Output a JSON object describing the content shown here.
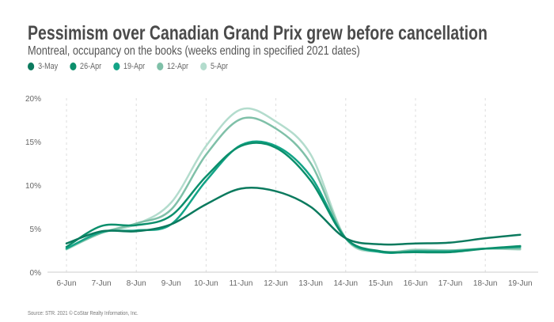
{
  "chart_data": {
    "type": "line",
    "title": "Pessimism over Canadian Grand Prix grew before cancellation",
    "subtitle": "Montreal, occupancy on the books (weeks ending in specified 2021 dates)",
    "source": "Source: STR. 2021 © CoStar Realty Information, Inc.",
    "x": [
      "6-Jun",
      "7-Jun",
      "8-Jun",
      "9-Jun",
      "10-Jun",
      "11-Jun",
      "12-Jun",
      "13-Jun",
      "14-Jun",
      "15-Jun",
      "16-Jun",
      "17-Jun",
      "18-Jun",
      "19-Jun"
    ],
    "ylim": [
      0,
      20
    ],
    "yticks": [
      0,
      5,
      10,
      15,
      20
    ],
    "ytick_labels": [
      "0%",
      "5%",
      "10%",
      "15%",
      "20%"
    ],
    "grid": "vertical dashed at alternate days",
    "legend_position": "top-left",
    "series": [
      {
        "name": "3-May",
        "color": "#0b7a5e",
        "values": [
          3.3,
          4.7,
          4.7,
          5.5,
          7.8,
          9.6,
          9.3,
          7.5,
          3.9,
          3.2,
          3.3,
          3.4,
          3.9,
          4.3
        ]
      },
      {
        "name": "26-Apr",
        "color": "#0b8f6c",
        "values": [
          2.9,
          5.3,
          5.4,
          6.5,
          11.0,
          14.5,
          14.3,
          10.5,
          3.9,
          2.4,
          2.3,
          2.3,
          2.7,
          3.0
        ]
      },
      {
        "name": "19-Apr",
        "color": "#13a487",
        "values": [
          2.7,
          4.6,
          4.8,
          5.5,
          10.5,
          14.6,
          14.5,
          11.0,
          3.9,
          2.3,
          2.4,
          2.4,
          2.7,
          2.9
        ]
      },
      {
        "name": "12-Apr",
        "color": "#7fc0a8",
        "values": [
          2.7,
          4.5,
          5.6,
          7.2,
          13.5,
          17.6,
          16.5,
          12.5,
          3.9,
          2.4,
          2.5,
          2.5,
          2.7,
          2.7
        ]
      },
      {
        "name": "5-Apr",
        "color": "#b3dccd",
        "values": [
          2.6,
          4.5,
          5.5,
          8.0,
          14.5,
          18.7,
          17.3,
          13.5,
          3.9,
          2.3,
          2.6,
          2.5,
          2.7,
          2.6
        ]
      }
    ]
  }
}
